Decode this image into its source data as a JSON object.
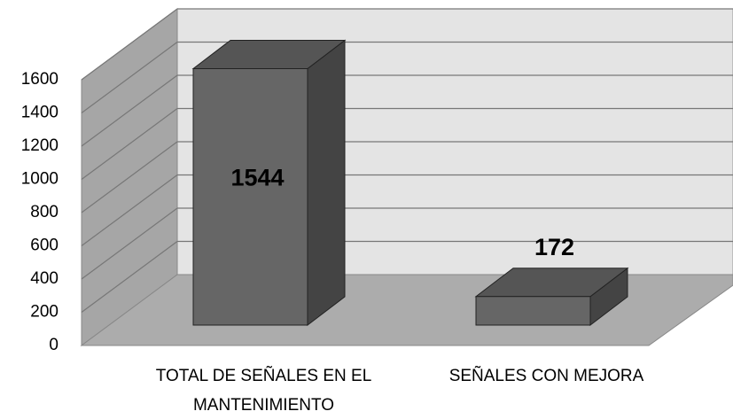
{
  "chart_data": {
    "type": "bar3d",
    "categories": [
      "TOTAL DE SEÑALES EN EL MANTENIMIENTO",
      "SEÑALES CON MEJORA"
    ],
    "values": [
      1544,
      172
    ],
    "color": "#666666",
    "ylim": [
      0,
      1600
    ],
    "yticks": [
      0,
      200,
      400,
      600,
      800,
      1000,
      1200,
      1400,
      1600
    ],
    "grid": true
  }
}
